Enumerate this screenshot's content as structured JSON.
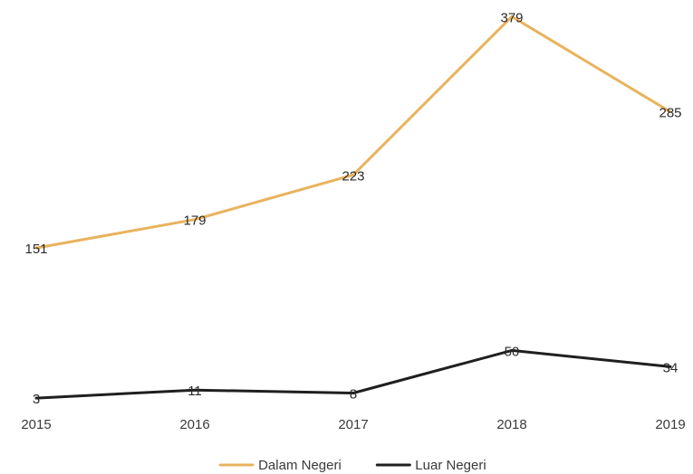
{
  "chart_data": {
    "type": "line",
    "categories": [
      "2015",
      "2016",
      "2017",
      "2018",
      "2019"
    ],
    "series": [
      {
        "name": "Dalam Negeri",
        "values": [
          151,
          179,
          223,
          379,
          285
        ],
        "color": "#e8b35e"
      },
      {
        "name": "Luar Negeri",
        "values": [
          3,
          11,
          8,
          50,
          34
        ],
        "color": "#1f1f1f"
      }
    ],
    "title": "",
    "xlabel": "",
    "ylabel": "",
    "ylim": [
      0,
      400
    ],
    "grid": false,
    "y_axis_visible": false,
    "data_labels": true,
    "legend_position": "bottom"
  }
}
